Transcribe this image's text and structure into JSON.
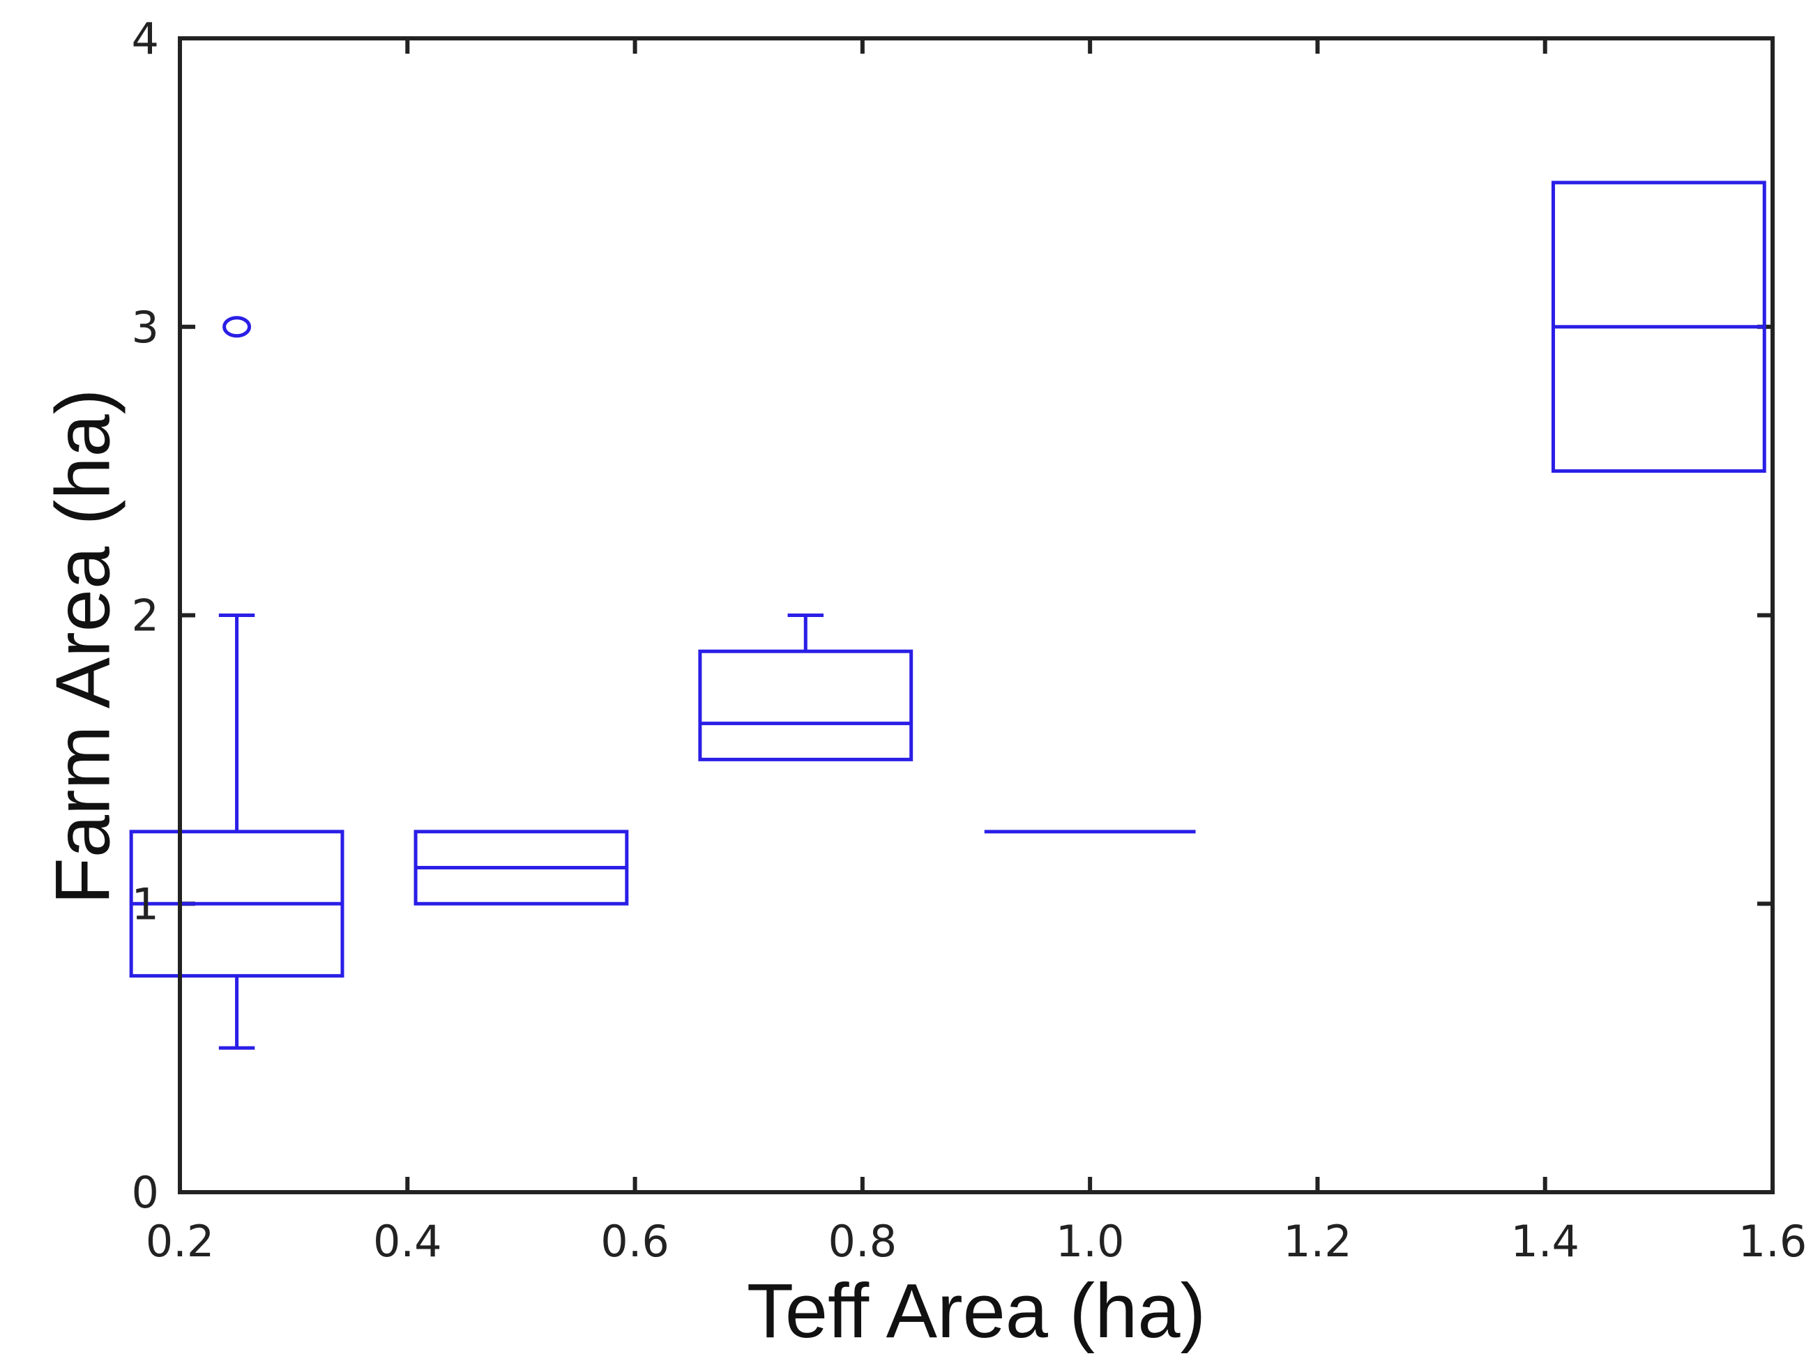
{
  "chart_data": {
    "type": "box",
    "title": "",
    "xlabel": "Teff Area (ha)",
    "ylabel": "Farm Area (ha)",
    "xlim": [
      0.2,
      1.6
    ],
    "ylim": [
      0,
      4
    ],
    "xticks": [
      "0.2",
      "0.4",
      "0.6",
      "0.8",
      "1.0",
      "1.2",
      "1.4",
      "1.6"
    ],
    "yticks": [
      "0",
      "1",
      "2",
      "3",
      "4"
    ],
    "grid": false,
    "box_color": "#2a1ee6",
    "axis_color": "#222222",
    "boxes": [
      {
        "x": 0.25,
        "whisker_low": 0.5,
        "q1": 0.75,
        "median": 1.0,
        "q3": 1.25,
        "whisker_high": 2.0,
        "outliers": [
          3.0
        ]
      },
      {
        "x": 0.5,
        "whisker_low": 1.0,
        "q1": 1.0,
        "median": 1.125,
        "q3": 1.25,
        "whisker_high": 1.25,
        "outliers": []
      },
      {
        "x": 0.75,
        "whisker_low": 1.5,
        "q1": 1.5,
        "median": 1.625,
        "q3": 1.875,
        "whisker_high": 2.0,
        "outliers": []
      },
      {
        "x": 1.0,
        "whisker_low": 1.25,
        "q1": 1.25,
        "median": 1.25,
        "q3": 1.25,
        "whisker_high": 1.25,
        "outliers": []
      },
      {
        "x": 1.5,
        "whisker_low": 2.5,
        "q1": 2.5,
        "median": 3.0,
        "q3": 3.5,
        "whisker_high": 3.5,
        "outliers": []
      }
    ]
  }
}
